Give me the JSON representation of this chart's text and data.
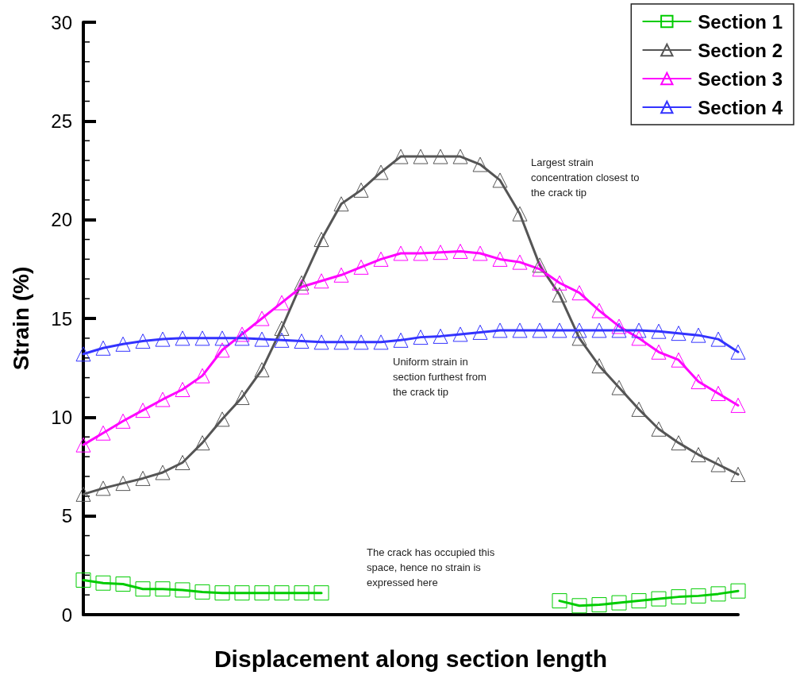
{
  "chart_data": {
    "type": "line",
    "xlabel": "Displacement along section length",
    "ylabel": "Strain (%)",
    "categories": [
      null,
      null,
      null,
      null,
      null,
      null,
      null,
      null,
      null,
      null,
      null,
      null,
      null,
      null,
      null,
      null,
      null,
      null,
      null,
      null,
      null,
      null,
      null,
      null,
      null,
      null,
      null,
      null,
      null,
      null,
      null,
      null,
      null,
      null
    ],
    "series": [
      {
        "name": "Section 1",
        "color": "#00cc00",
        "marker": "square",
        "values": [
          1.75,
          1.6,
          1.55,
          1.3,
          1.3,
          1.25,
          1.15,
          1.1,
          1.1,
          1.1,
          1.1,
          1.1,
          1.1,
          null,
          null,
          null,
          null,
          null,
          null,
          null,
          null,
          null,
          null,
          null,
          0.7,
          0.45,
          0.5,
          0.6,
          0.7,
          0.8,
          0.9,
          0.95,
          1.05,
          1.2
        ]
      },
      {
        "name": "Section 2",
        "color": "#555555",
        "marker": "triangle",
        "values": [
          6.1,
          6.4,
          6.65,
          6.9,
          7.2,
          7.7,
          8.7,
          9.9,
          11.0,
          12.4,
          14.5,
          16.8,
          19.0,
          20.8,
          21.5,
          22.4,
          23.2,
          23.2,
          23.2,
          23.2,
          22.8,
          22.0,
          20.3,
          17.7,
          16.2,
          14.0,
          12.6,
          11.5,
          10.4,
          9.4,
          8.7,
          8.1,
          7.6,
          7.1
        ]
      },
      {
        "name": "Section 3",
        "color": "#ff00ff",
        "marker": "triangle",
        "values": [
          8.6,
          9.2,
          9.8,
          10.35,
          10.9,
          11.4,
          12.1,
          13.4,
          14.2,
          15.0,
          15.8,
          16.6,
          16.9,
          17.2,
          17.6,
          18.0,
          18.3,
          18.3,
          18.35,
          18.4,
          18.3,
          18.0,
          17.85,
          17.5,
          16.8,
          16.3,
          15.4,
          14.6,
          14.0,
          13.3,
          12.9,
          11.8,
          11.2,
          10.6
        ]
      },
      {
        "name": "Section 4",
        "color": "#3333ff",
        "marker": "triangle",
        "values": [
          13.2,
          13.5,
          13.7,
          13.85,
          13.95,
          14.0,
          14.0,
          14.0,
          14.0,
          13.95,
          13.9,
          13.85,
          13.8,
          13.8,
          13.8,
          13.8,
          13.9,
          14.05,
          14.1,
          14.2,
          14.3,
          14.4,
          14.4,
          14.4,
          14.4,
          14.4,
          14.4,
          14.4,
          14.4,
          14.35,
          14.25,
          14.15,
          13.95,
          13.3
        ]
      }
    ],
    "ylim": [
      0,
      30
    ],
    "yticks": [
      0,
      5,
      10,
      15,
      20,
      25,
      30
    ],
    "grid": false,
    "legend": "top right",
    "tick_labels": "y",
    "line_style": "solid",
    "annotations": [
      "Largest strain concentration closest to the crack tip",
      "Uniform strain in section furthest from the crack tip",
      "The crack has occupied this space, hence no strain is expressed here"
    ]
  }
}
